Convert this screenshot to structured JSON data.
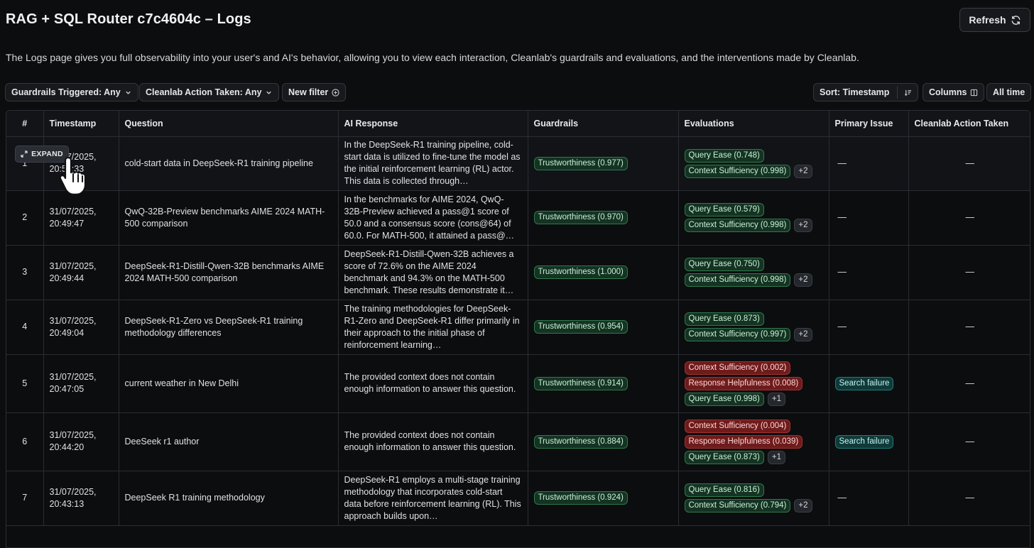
{
  "header": {
    "title": "RAG + SQL Router c7c4604c – Logs",
    "refresh_label": "Refresh",
    "description": "The Logs page gives you full observability into your user's and AI's behavior, allowing you to view each interaction, Cleanlab's guardrails and evaluations, and the interventions made by Cleanlab."
  },
  "toolbar": {
    "guardrails_filter": "Guardrails Triggered: Any",
    "action_filter": "Cleanlab Action Taken: Any",
    "new_filter": "New filter",
    "sort": "Sort: Timestamp",
    "columns": "Columns",
    "time_range": "All time"
  },
  "table": {
    "headers": [
      "#",
      "Timestamp",
      "Question",
      "AI Response",
      "Guardrails",
      "Evaluations",
      "Primary Issue",
      "Cleanlab Action Taken"
    ],
    "expand_label": "EXPAND",
    "rows": [
      {
        "num": "1",
        "timestamp_line1": "31/07/2025,",
        "timestamp_line2": "20:50:33",
        "question": "cold-start data in DeepSeek-R1 training pipeline",
        "response": "In the DeepSeek-R1 training pipeline, cold-start data is utilized to fine-tune the model as the initial reinforcement learning (RL) actor. This data is collected through…",
        "guardrail": "Trustworthiness (0.977)",
        "evals": [
          {
            "label": "Query Ease (0.748)",
            "color": "green"
          },
          {
            "label": "Context Sufficiency (0.998)",
            "color": "green",
            "more": "+2"
          }
        ],
        "primary_issue": "—",
        "action": "—"
      },
      {
        "num": "2",
        "timestamp_line1": "31/07/2025,",
        "timestamp_line2": "20:49:47",
        "question": "QwQ-32B-Preview benchmarks AIME 2024 MATH-500 comparison",
        "response": "In the benchmarks for AIME 2024, QwQ-32B-Preview achieved a pass@1 score of 50.0 and a consensus score (cons@64) of 60.0. For MATH-500, it attained a pass@…",
        "guardrail": "Trustworthiness (0.970)",
        "evals": [
          {
            "label": "Query Ease (0.579)",
            "color": "green"
          },
          {
            "label": "Context Sufficiency (0.998)",
            "color": "green",
            "more": "+2"
          }
        ],
        "primary_issue": "—",
        "action": "—"
      },
      {
        "num": "3",
        "timestamp_line1": "31/07/2025,",
        "timestamp_line2": "20:49:44",
        "question": "DeepSeek-R1-Distill-Qwen-32B benchmarks AIME 2024 MATH-500 comparison",
        "response": "DeepSeek-R1-Distill-Qwen-32B achieves a score of 72.6% on the AIME 2024 benchmark and 94.3% on the MATH-500 benchmark. These results demonstrate it…",
        "guardrail": "Trustworthiness (1.000)",
        "evals": [
          {
            "label": "Query Ease (0.750)",
            "color": "green"
          },
          {
            "label": "Context Sufficiency (0.998)",
            "color": "green",
            "more": "+2"
          }
        ],
        "primary_issue": "—",
        "action": "—"
      },
      {
        "num": "4",
        "timestamp_line1": "31/07/2025,",
        "timestamp_line2": "20:49:04",
        "question": "DeepSeek-R1-Zero vs DeepSeek-R1 training methodology differences",
        "response": "The training methodologies for DeepSeek-R1-Zero and DeepSeek-R1 differ primarily in their approach to the initial phase of reinforcement learning…",
        "guardrail": "Trustworthiness (0.954)",
        "evals": [
          {
            "label": "Query Ease (0.873)",
            "color": "green"
          },
          {
            "label": "Context Sufficiency (0.997)",
            "color": "green",
            "more": "+2"
          }
        ],
        "primary_issue": "—",
        "action": "—"
      },
      {
        "num": "5",
        "timestamp_line1": "31/07/2025,",
        "timestamp_line2": "20:47:05",
        "question": "current weather in New Delhi",
        "response": "The provided context does not contain enough information to answer this question.",
        "guardrail": "Trustworthiness (0.914)",
        "evals": [
          {
            "label": "Context Sufficiency (0.002)",
            "color": "red"
          },
          {
            "label": "Response Helpfulness (0.008)",
            "color": "red"
          },
          {
            "label": "Query Ease (0.998)",
            "color": "green",
            "more": "+1"
          }
        ],
        "primary_issue": "Search failure",
        "action": "—"
      },
      {
        "num": "6",
        "timestamp_line1": "31/07/2025,",
        "timestamp_line2": "20:44:20",
        "question": "DeeSeek r1 author",
        "response": "The provided context does not contain enough information to answer this question.",
        "guardrail": "Trustworthiness (0.884)",
        "evals": [
          {
            "label": "Context Sufficiency (0.004)",
            "color": "red"
          },
          {
            "label": "Response Helpfulness (0.039)",
            "color": "red"
          },
          {
            "label": "Query Ease (0.873)",
            "color": "green",
            "more": "+1"
          }
        ],
        "primary_issue": "Search failure",
        "action": "—"
      },
      {
        "num": "7",
        "timestamp_line1": "31/07/2025,",
        "timestamp_line2": "20:43:13",
        "question": "DeepSeek R1 training methodology",
        "response": "DeepSeek-R1 employs a multi-stage training methodology that incorporates cold-start data before reinforcement learning (RL). This approach builds upon…",
        "guardrail": "Trustworthiness (0.924)",
        "evals": [
          {
            "label": "Query Ease (0.816)",
            "color": "green"
          },
          {
            "label": "Context Sufficiency (0.794)",
            "color": "green",
            "more": "+2"
          }
        ],
        "primary_issue": "—",
        "action": "—"
      }
    ]
  }
}
